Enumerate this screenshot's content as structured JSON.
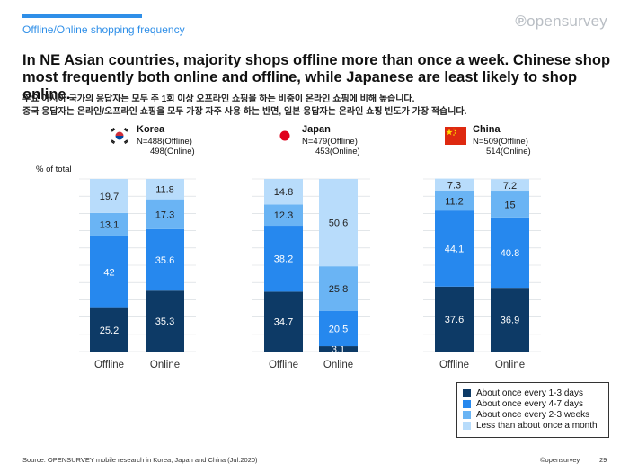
{
  "header": {
    "section_label": "Offline/Online shopping frequency",
    "logo_text": "opensurvey",
    "headline": "In NE Asian countries, majority shops offline more than once a week. Chinese shop most frequently both online and offline, while Japanese are least likely to shop online.",
    "subtitle_line1": "주요 아시아 국가의 응답자는 모두 주 1회 이상 오프라인 쇼핑을 하는 비중이 온라인 쇼핑에 비해 높습니다.",
    "subtitle_line2": "중국 응답자는 온라인/오프라인 쇼핑을 모두 가장 자주 사용 하는 반면, 일본 응답자는 온라인 쇼핑 빈도가 가장 적습니다."
  },
  "countries": [
    {
      "name": "Korea",
      "n_offline": "N=488(Offline)",
      "n_online": "498(Online)"
    },
    {
      "name": "Japan",
      "n_offline": "N=479(Offline)",
      "n_online": "453(Online)"
    },
    {
      "name": "China",
      "n_offline": "N=509(Offline)",
      "n_online": "514(Online)"
    }
  ],
  "colors": {
    "accent": "#2f8fe8",
    "series": [
      "#0d3a66",
      "#2688ee",
      "#6ab4f4",
      "#b8dcfb"
    ],
    "grid": "#d2d7dc"
  },
  "chart_data": {
    "type": "bar",
    "stacked": true,
    "unit": "% of total",
    "ylim": [
      0,
      100
    ],
    "categories": [
      "Offline",
      "Online"
    ],
    "series_names": [
      "About once every 1-3 days",
      "About once every 4-7 days",
      "About once every 2-3 weeks",
      "Less than about once a month"
    ],
    "groups": [
      {
        "country": "Korea",
        "bars": [
          {
            "category": "Offline",
            "values": [
              25.2,
              42,
              13.1,
              19.7
            ]
          },
          {
            "category": "Online",
            "values": [
              35.3,
              35.6,
              17.3,
              11.8
            ]
          }
        ]
      },
      {
        "country": "Japan",
        "bars": [
          {
            "category": "Offline",
            "values": [
              34.7,
              38.2,
              12.3,
              14.8
            ]
          },
          {
            "category": "Online",
            "values": [
              3.1,
              20.5,
              25.8,
              50.6
            ]
          }
        ]
      },
      {
        "country": "China",
        "bars": [
          {
            "category": "Offline",
            "values": [
              37.6,
              44.1,
              11.2,
              7.3
            ]
          },
          {
            "category": "Online",
            "values": [
              36.9,
              40.8,
              15,
              7.2
            ]
          }
        ]
      }
    ],
    "legend_position": "bottom-right"
  },
  "footer": {
    "source": "Source: OPENSURVEY mobile research in Korea, Japan and China (Jul.2020)",
    "brand": "©opensurvey",
    "page_number": "29"
  }
}
